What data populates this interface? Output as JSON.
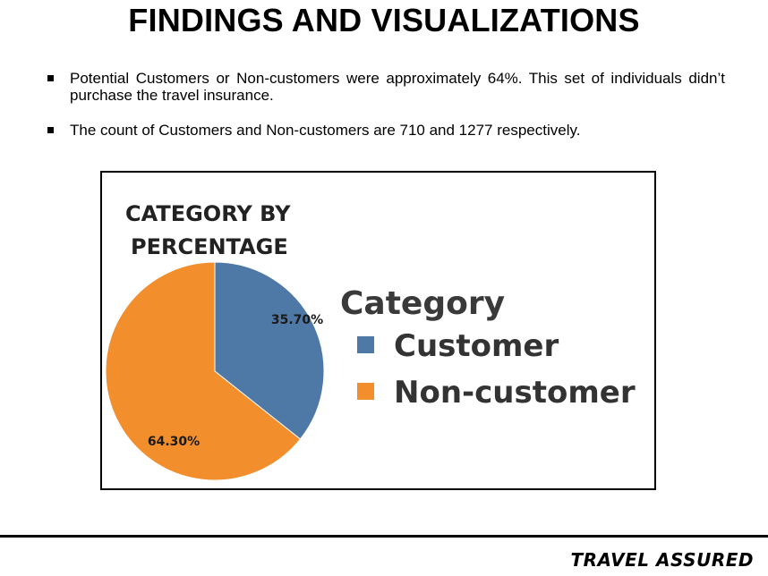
{
  "title": "FINDINGS AND VISUALIZATIONS",
  "bullets": [
    "Potential Customers or Non-customers were approximately 64%. This set of individuals didn’t purchase the travel insurance.",
    "The count of Customers and Non-customers are 710 and 1277 respectively."
  ],
  "chart_data": {
    "type": "pie",
    "title_lines": [
      "CATEGORY BY",
      "PERCENTAGE"
    ],
    "legend_title": "Category",
    "legend_placement": "right",
    "series": [
      {
        "name": "Customer",
        "value": 35.7,
        "label": "35.70%",
        "color": "#4e79a7"
      },
      {
        "name": "Non-customer",
        "value": 64.3,
        "label": "64.30%",
        "color": "#f28e2b"
      }
    ]
  },
  "footer": {
    "brand": "TRAVEL ASSURED"
  }
}
